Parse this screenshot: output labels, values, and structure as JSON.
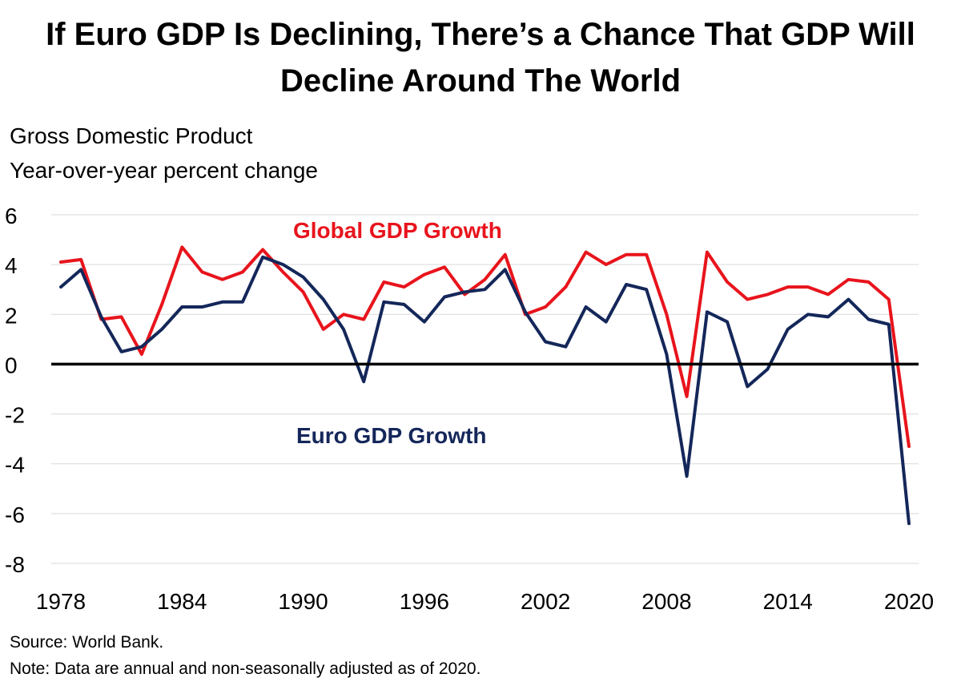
{
  "chart_data": {
    "type": "line",
    "title": "If Euro GDP Is Declining, There’s a Chance That GDP Will Decline Around The World",
    "subtitle_lines": [
      "Gross Domestic Product",
      "Year-over-year percent change"
    ],
    "xlabel": "",
    "ylabel": "",
    "xlim": [
      1978,
      2020
    ],
    "ylim": [
      -8,
      6
    ],
    "yticks": [
      -8,
      -6,
      -4,
      -2,
      0,
      2,
      4,
      6
    ],
    "xticks": [
      1978,
      1984,
      1990,
      1996,
      2002,
      2008,
      2014,
      2020
    ],
    "grid": true,
    "x": [
      1978,
      1979,
      1980,
      1981,
      1982,
      1983,
      1984,
      1985,
      1986,
      1987,
      1988,
      1989,
      1990,
      1991,
      1992,
      1993,
      1994,
      1995,
      1996,
      1997,
      1998,
      1999,
      2000,
      2001,
      2002,
      2003,
      2004,
      2005,
      2006,
      2007,
      2008,
      2009,
      2010,
      2011,
      2012,
      2013,
      2014,
      2015,
      2016,
      2017,
      2018,
      2019,
      2020
    ],
    "series": [
      {
        "name": "Global GDP Growth",
        "color": "#e8141c",
        "values": [
          4.1,
          4.2,
          1.8,
          1.9,
          0.4,
          2.4,
          4.7,
          3.7,
          3.4,
          3.7,
          4.6,
          3.7,
          2.9,
          1.4,
          2.0,
          1.8,
          3.3,
          3.1,
          3.6,
          3.9,
          2.8,
          3.4,
          4.4,
          2.0,
          2.3,
          3.1,
          4.5,
          4.0,
          4.4,
          4.4,
          2.0,
          -1.3,
          4.5,
          3.3,
          2.6,
          2.8,
          3.1,
          3.1,
          2.8,
          3.4,
          3.3,
          2.6,
          -3.3
        ]
      },
      {
        "name": "Euro GDP Growth",
        "color": "#14275a",
        "values": [
          3.1,
          3.8,
          1.9,
          0.5,
          0.7,
          1.4,
          2.3,
          2.3,
          2.5,
          2.5,
          4.3,
          4.0,
          3.5,
          2.6,
          1.4,
          -0.7,
          2.5,
          2.4,
          1.7,
          2.7,
          2.9,
          3.0,
          3.8,
          2.1,
          0.9,
          0.7,
          2.3,
          1.7,
          3.2,
          3.0,
          0.4,
          -4.5,
          2.1,
          1.7,
          -0.9,
          -0.2,
          1.4,
          2.0,
          1.9,
          2.6,
          1.8,
          1.6,
          -6.4
        ]
      }
    ],
    "annotations": [
      "Global GDP Growth",
      "Euro GDP Growth"
    ],
    "source": "Source: World Bank.",
    "note": "Note: Data are annual and non-seasonally adjusted as of 2020."
  }
}
